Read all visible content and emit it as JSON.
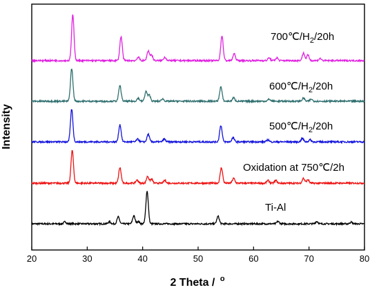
{
  "chart_data": {
    "type": "line",
    "title": "",
    "xlabel": "2 Theta /",
    "xlabel_unit": "o",
    "ylabel": "Intensity",
    "xlim": [
      20,
      80
    ],
    "xticks": [
      20,
      30,
      40,
      50,
      60,
      70,
      80
    ],
    "grid": false,
    "legend": "none",
    "series": [
      {
        "name": "Ti-Al",
        "label_parts": [
          "Ti-Al"
        ],
        "color": "#000000",
        "baseline": 0.0,
        "peaks": [
          {
            "x": 26.0,
            "h": 0.06
          },
          {
            "x": 34.0,
            "h": 0.06
          },
          {
            "x": 35.6,
            "h": 0.2
          },
          {
            "x": 38.4,
            "h": 0.23
          },
          {
            "x": 39.2,
            "h": 0.07
          },
          {
            "x": 40.8,
            "h": 0.95
          },
          {
            "x": 53.6,
            "h": 0.22
          },
          {
            "x": 64.4,
            "h": 0.07
          },
          {
            "x": 71.4,
            "h": 0.07
          },
          {
            "x": 77.6,
            "h": 0.05
          }
        ]
      },
      {
        "name": "Oxidation at 750℃/2h",
        "label_parts": [
          "Oxidation at 750℃/2h"
        ],
        "color": "#ee1111",
        "baseline": 1.2,
        "peaks": [
          {
            "x": 27.3,
            "h": 0.95
          },
          {
            "x": 35.9,
            "h": 0.45
          },
          {
            "x": 39.0,
            "h": 0.09
          },
          {
            "x": 40.9,
            "h": 0.2
          },
          {
            "x": 41.6,
            "h": 0.12
          },
          {
            "x": 44.0,
            "h": 0.08
          },
          {
            "x": 54.2,
            "h": 0.45
          },
          {
            "x": 56.4,
            "h": 0.14
          },
          {
            "x": 62.6,
            "h": 0.08
          },
          {
            "x": 64.0,
            "h": 0.08
          },
          {
            "x": 69.0,
            "h": 0.14
          },
          {
            "x": 69.8,
            "h": 0.1
          }
        ]
      },
      {
        "name": "500℃/H2/20h",
        "label_parts": [
          "500℃/H",
          "2",
          "/20h"
        ],
        "color": "#1111dd",
        "baseline": 2.35,
        "peaks": [
          {
            "x": 27.2,
            "h": 0.95
          },
          {
            "x": 35.9,
            "h": 0.5
          },
          {
            "x": 39.1,
            "h": 0.08
          },
          {
            "x": 41.0,
            "h": 0.22
          },
          {
            "x": 43.9,
            "h": 0.08
          },
          {
            "x": 54.1,
            "h": 0.48
          },
          {
            "x": 56.3,
            "h": 0.12
          },
          {
            "x": 62.6,
            "h": 0.06
          },
          {
            "x": 68.8,
            "h": 0.1
          },
          {
            "x": 70.2,
            "h": 0.06
          }
        ]
      },
      {
        "name": "600℃/H2/20h",
        "label_parts": [
          "600℃/H",
          "2",
          "/20h"
        ],
        "color": "#2e6e6e",
        "baseline": 3.55,
        "peaks": [
          {
            "x": 27.2,
            "h": 0.95
          },
          {
            "x": 35.9,
            "h": 0.45
          },
          {
            "x": 39.2,
            "h": 0.09
          },
          {
            "x": 40.6,
            "h": 0.28
          },
          {
            "x": 41.2,
            "h": 0.18
          },
          {
            "x": 43.6,
            "h": 0.07
          },
          {
            "x": 54.1,
            "h": 0.42
          },
          {
            "x": 56.4,
            "h": 0.1
          },
          {
            "x": 62.8,
            "h": 0.06
          },
          {
            "x": 69.0,
            "h": 0.09
          },
          {
            "x": 70.4,
            "h": 0.06
          }
        ]
      },
      {
        "name": "700℃/H2/20h",
        "label_parts": [
          "700℃/H",
          "2",
          "/20h"
        ],
        "color": "#e020e0",
        "baseline": 4.75,
        "peaks": [
          {
            "x": 27.4,
            "h": 1.32
          },
          {
            "x": 36.1,
            "h": 0.7
          },
          {
            "x": 39.2,
            "h": 0.1
          },
          {
            "x": 41.0,
            "h": 0.28
          },
          {
            "x": 41.6,
            "h": 0.16
          },
          {
            "x": 44.0,
            "h": 0.1
          },
          {
            "x": 54.3,
            "h": 0.72
          },
          {
            "x": 56.5,
            "h": 0.2
          },
          {
            "x": 62.8,
            "h": 0.08
          },
          {
            "x": 64.2,
            "h": 0.08
          },
          {
            "x": 69.0,
            "h": 0.22
          },
          {
            "x": 69.8,
            "h": 0.16
          },
          {
            "x": 72.0,
            "h": 0.06
          }
        ]
      }
    ]
  }
}
